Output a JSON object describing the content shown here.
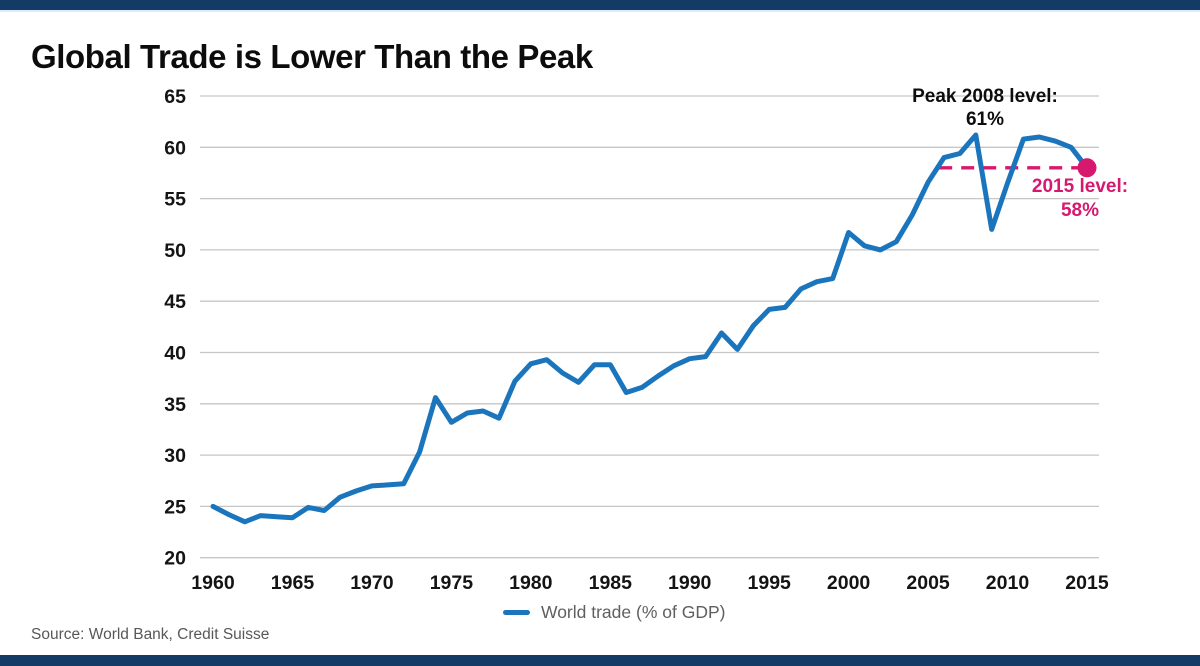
{
  "title": "Global Trade is Lower Than the Peak",
  "source_note": "Source: World Bank, Credit Suisse",
  "legend": {
    "label": "World trade (% of GDP)"
  },
  "annotations": {
    "peak": {
      "line1": "Peak 2008 level:",
      "line2": "61%"
    },
    "level_2015": {
      "line1": "2015 level:",
      "line2": "58%"
    }
  },
  "colors": {
    "series_blue": "#1b75bc",
    "accent_pink": "#d6186f",
    "bar_navy": "#133b66",
    "grid_gray": "#c6c6c6",
    "text_dark": "#141414",
    "text_gray": "#58585a"
  },
  "chart_data": {
    "type": "line",
    "title": "Global Trade is Lower Than the Peak",
    "xlabel": "",
    "ylabel": "",
    "xlim": [
      1960,
      2015
    ],
    "ylim": [
      20,
      65
    ],
    "x_ticks": [
      1960,
      1965,
      1970,
      1975,
      1980,
      1985,
      1990,
      1995,
      2000,
      2005,
      2010,
      2015
    ],
    "y_ticks": [
      20,
      25,
      30,
      35,
      40,
      45,
      50,
      55,
      60,
      65
    ],
    "grid": "horizontal",
    "legend_position": "bottom-center",
    "series": [
      {
        "name": "World trade (% of GDP)",
        "color": "#1b75bc",
        "x": [
          1960,
          1961,
          1962,
          1963,
          1964,
          1965,
          1966,
          1967,
          1968,
          1969,
          1970,
          1971,
          1972,
          1973,
          1974,
          1975,
          1976,
          1977,
          1978,
          1979,
          1980,
          1981,
          1982,
          1983,
          1984,
          1985,
          1986,
          1987,
          1988,
          1989,
          1990,
          1991,
          1992,
          1993,
          1994,
          1995,
          1996,
          1997,
          1998,
          1999,
          2000,
          2001,
          2002,
          2003,
          2004,
          2005,
          2006,
          2007,
          2008,
          2009,
          2010,
          2011,
          2012,
          2013,
          2014,
          2015
        ],
        "y": [
          25.0,
          24.2,
          23.5,
          24.1,
          24.0,
          23.9,
          24.9,
          24.6,
          25.9,
          26.5,
          27.0,
          27.1,
          27.2,
          30.3,
          35.6,
          33.2,
          34.1,
          34.3,
          33.6,
          37.2,
          38.9,
          39.3,
          38.0,
          37.1,
          38.8,
          38.8,
          36.1,
          36.6,
          37.7,
          38.7,
          39.4,
          39.6,
          41.9,
          40.3,
          42.6,
          44.2,
          44.4,
          46.2,
          46.9,
          47.2,
          51.7,
          50.4,
          50.0,
          50.8,
          53.4,
          56.6,
          59.0,
          59.4,
          61.2,
          52.0,
          56.5,
          60.8,
          61.0,
          60.6,
          60.0,
          58.0
        ]
      }
    ],
    "reference_line": {
      "label": "2015 level",
      "y": 58,
      "x_from": 2005.7,
      "x_to": 2015,
      "style": "dashed",
      "color": "#d6186f"
    },
    "end_dot": {
      "x": 2015,
      "y": 58,
      "color": "#d6186f"
    },
    "callouts": [
      {
        "text": "Peak 2008 level: 61%",
        "x": 2008,
        "y": 61.2
      },
      {
        "text": "2015 level: 58%",
        "x": 2015,
        "y": 58
      }
    ]
  }
}
